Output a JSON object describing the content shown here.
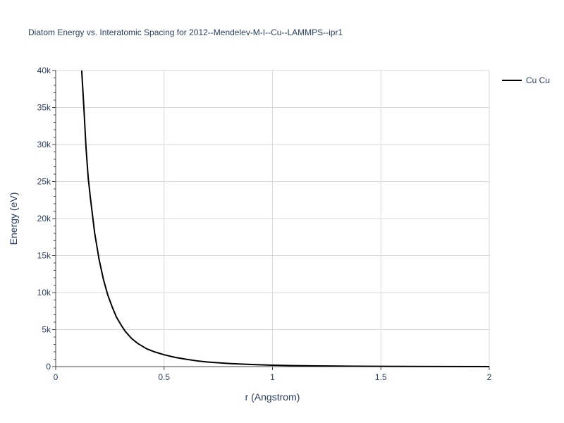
{
  "chart_data": {
    "type": "line",
    "title": "Diatom Energy vs. Interatomic Spacing for 2012--Mendelev-M-I--Cu--LAMMPS--ipr1",
    "xlabel": "r (Angstrom)",
    "ylabel": "Energy (eV)",
    "xlim": [
      0,
      2
    ],
    "ylim": [
      0,
      40000
    ],
    "x_ticks": [
      0,
      0.5,
      1,
      1.5,
      2
    ],
    "x_tick_labels": [
      "0",
      "0.5",
      "1",
      "1.5",
      "2"
    ],
    "y_ticks": [
      0,
      5000,
      10000,
      15000,
      20000,
      25000,
      30000,
      35000,
      40000
    ],
    "y_tick_labels": [
      "0",
      "5k",
      "10k",
      "15k",
      "20k",
      "25k",
      "30k",
      "35k",
      "40k"
    ],
    "grid": true,
    "legend_position": "top-right",
    "series": [
      {
        "name": "Cu Cu",
        "color": "#000000",
        "x": [
          0.12,
          0.13,
          0.14,
          0.15,
          0.16,
          0.18,
          0.2,
          0.22,
          0.24,
          0.26,
          0.28,
          0.3,
          0.32,
          0.35,
          0.38,
          0.42,
          0.46,
          0.5,
          0.55,
          0.6,
          0.65,
          0.7,
          0.8,
          0.9,
          1.0,
          1.1,
          1.2,
          1.4,
          1.6,
          1.8,
          2.0
        ],
        "y": [
          40000,
          35000,
          29500,
          25500,
          22800,
          18000,
          14500,
          11800,
          9700,
          8100,
          6700,
          5700,
          4800,
          3800,
          3100,
          2400,
          1950,
          1600,
          1250,
          1000,
          780,
          620,
          420,
          280,
          190,
          130,
          90,
          45,
          22,
          10,
          4
        ]
      }
    ]
  }
}
